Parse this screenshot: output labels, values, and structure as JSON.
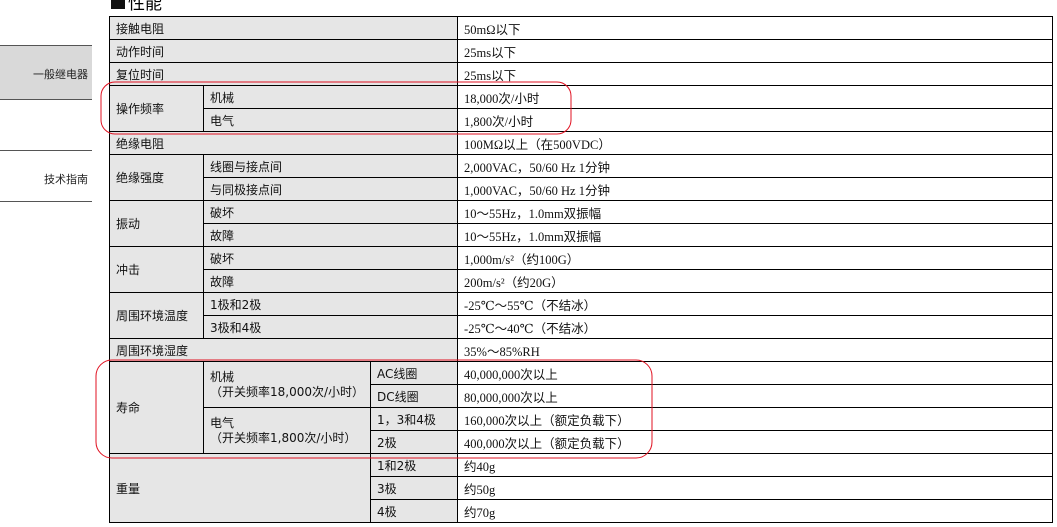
{
  "heading": "性能",
  "sidebar": {
    "items": [
      {
        "label": "一般继电器",
        "active": true
      },
      {
        "label": "技术指南",
        "active": false
      }
    ]
  },
  "table": {
    "contact_resistance": {
      "label": "接触电阻",
      "value": "50mΩ以下"
    },
    "operate_time": {
      "label": "动作时间",
      "value": "25ms以下"
    },
    "release_time": {
      "label": "复位时间",
      "value": "25ms以下"
    },
    "operating_frequency": {
      "label": "操作频率",
      "mechanical": {
        "label": "机械",
        "value": "18,000次/小时"
      },
      "electrical": {
        "label": "电气",
        "value": "1,800次/小时"
      }
    },
    "insulation_resistance": {
      "label": "绝缘电阻",
      "value": "100MΩ以上（在500VDC）"
    },
    "dielectric_strength": {
      "label": "绝缘强度",
      "coil_contact": {
        "label": "线圈与接点间",
        "value": "2,000VAC，50/60 Hz  1分钟"
      },
      "same_pole": {
        "label": "与同极接点间",
        "value": "1,000VAC，50/60 Hz  1分钟"
      }
    },
    "vibration": {
      "label": "振动",
      "destruction": {
        "label": "破坏",
        "value": "10～55Hz，1.0mm双振幅"
      },
      "malfunction": {
        "label": "故障",
        "value": "10～55Hz，1.0mm双振幅"
      }
    },
    "shock": {
      "label": "冲击",
      "destruction": {
        "label": "破坏",
        "value": "1,000m/s²（约100G）"
      },
      "malfunction": {
        "label": "故障",
        "value": "200m/s²（约20G）"
      }
    },
    "ambient_temperature": {
      "label": "周围环境温度",
      "p12": {
        "label": "1极和2极",
        "value": "-25℃～55℃（不结冰）"
      },
      "p34": {
        "label": "3极和4极",
        "value": "-25℃～40℃（不结冰）"
      }
    },
    "ambient_humidity": {
      "label": "周围环境湿度",
      "value": "35%～85%RH"
    },
    "life": {
      "label": "寿命",
      "mechanical": {
        "label": "机械",
        "sub": "（开关频率18,000次/小时）",
        "ac": {
          "label": "AC线圈",
          "value": "40,000,000次以上"
        },
        "dc": {
          "label": "DC线圈",
          "value": "80,000,000次以上"
        }
      },
      "electrical": {
        "label": "电气",
        "sub": "（开关频率1,800次/小时）",
        "p134": {
          "label": "1，3和4极",
          "value": "160,000次以上（额定负载下）"
        },
        "p2": {
          "label": "2极",
          "value": "400,000次以上（额定负载下）"
        }
      }
    },
    "weight": {
      "label": "重量",
      "p12": {
        "label": "1和2极",
        "value": "约40g"
      },
      "p3": {
        "label": "3极",
        "value": "约50g"
      },
      "p4": {
        "label": "4极",
        "value": "约70g"
      }
    }
  },
  "colors": {
    "highlight": "#e01020",
    "label_bg": "#e6e6e6",
    "sidebar_active_bg": "#d9d9d9"
  }
}
